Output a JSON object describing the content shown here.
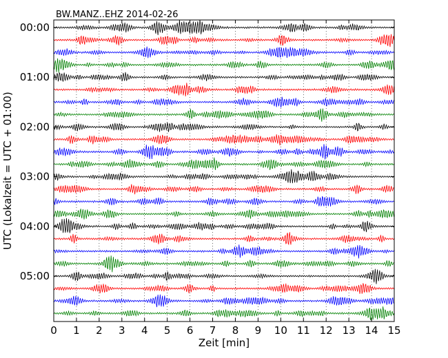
{
  "chart_data": {
    "type": "line",
    "title": "BW.MANZ..EHZ 2014-02-26",
    "xlabel": "Zeit  [min]",
    "ylabel": "UTC (Lokalzeit = UTC + 01:00)",
    "xlim": [
      0,
      15
    ],
    "x_ticks": [
      "0",
      "1",
      "2",
      "3",
      "4",
      "5",
      "6",
      "7",
      "8",
      "9",
      "10",
      "11",
      "12",
      "13",
      "14",
      "15"
    ],
    "y_ticks": [
      "00:00",
      "01:00",
      "02:00",
      "03:00",
      "04:00",
      "05:00"
    ],
    "traces_per_hour": 4,
    "trace_minutes": 15,
    "trace_colors": [
      "#000000",
      "#ff0000",
      "#0000ff",
      "#008000"
    ],
    "traces": [
      {
        "start": "00:00",
        "color": "#000000"
      },
      {
        "start": "00:15",
        "color": "#ff0000"
      },
      {
        "start": "00:30",
        "color": "#0000ff"
      },
      {
        "start": "00:45",
        "color": "#008000"
      },
      {
        "start": "01:00",
        "color": "#000000"
      },
      {
        "start": "01:15",
        "color": "#ff0000"
      },
      {
        "start": "01:30",
        "color": "#0000ff"
      },
      {
        "start": "01:45",
        "color": "#008000"
      },
      {
        "start": "02:00",
        "color": "#000000"
      },
      {
        "start": "02:15",
        "color": "#ff0000"
      },
      {
        "start": "02:30",
        "color": "#0000ff"
      },
      {
        "start": "02:45",
        "color": "#008000"
      },
      {
        "start": "03:00",
        "color": "#000000"
      },
      {
        "start": "03:15",
        "color": "#ff0000"
      },
      {
        "start": "03:30",
        "color": "#0000ff"
      },
      {
        "start": "03:45",
        "color": "#008000"
      },
      {
        "start": "04:00",
        "color": "#000000"
      },
      {
        "start": "04:15",
        "color": "#ff0000"
      },
      {
        "start": "04:30",
        "color": "#0000ff"
      },
      {
        "start": "04:45",
        "color": "#008000"
      },
      {
        "start": "05:00",
        "color": "#000000"
      },
      {
        "start": "05:15",
        "color": "#ff0000"
      },
      {
        "start": "05:30",
        "color": "#0000ff"
      },
      {
        "start": "05:45",
        "color": "#008000"
      }
    ],
    "vertical_grid": "dotted at each minute",
    "legend": "none"
  }
}
